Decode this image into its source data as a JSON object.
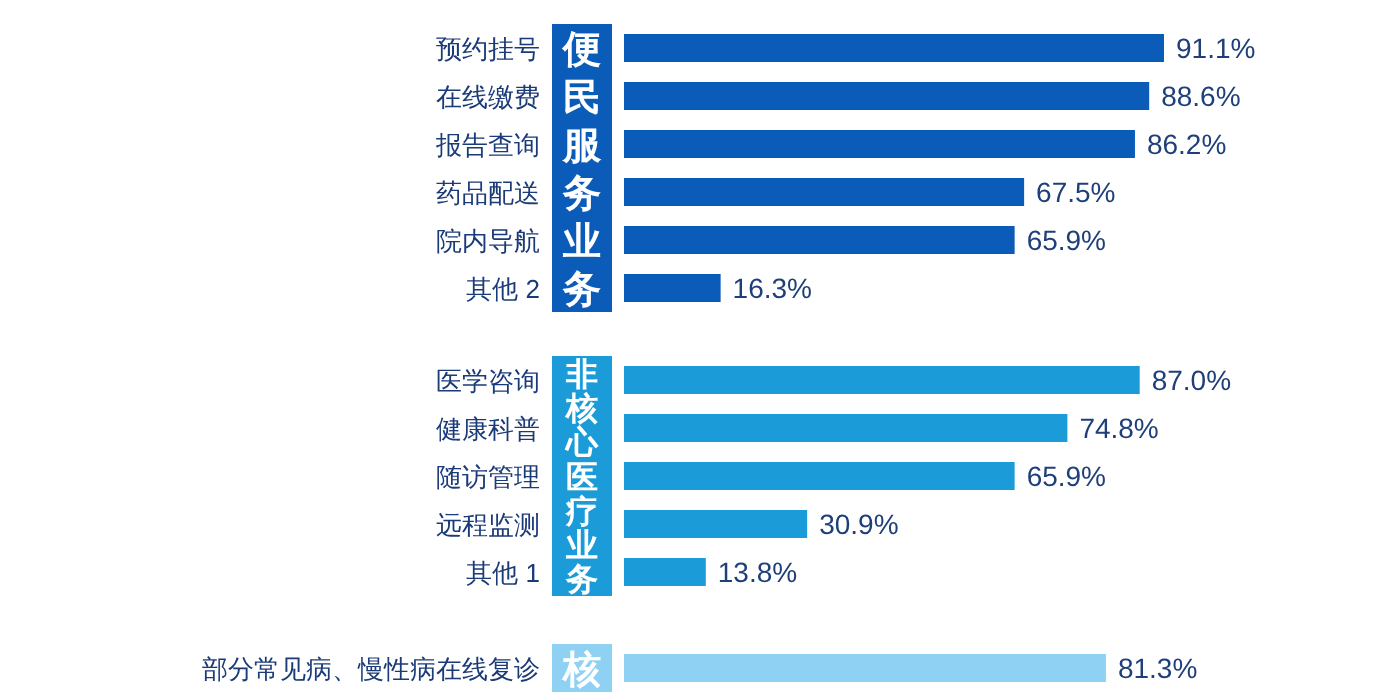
{
  "chart_data": [
    {
      "type": "bar",
      "orientation": "horizontal",
      "categories": [
        "预约挂号",
        "在线缴费",
        "报告查询",
        "药品配送",
        "院内导航",
        "其他 2"
      ],
      "values": [
        91.1,
        88.6,
        86.2,
        67.5,
        65.9,
        16.3
      ],
      "value_labels": [
        "91.1%",
        "88.6%",
        "86.2%",
        "67.5%",
        "65.9%",
        "16.3%"
      ],
      "color": "#0b5cb8",
      "annotations": [
        "便民服务业务"
      ]
    },
    {
      "type": "bar",
      "orientation": "horizontal",
      "categories": [
        "医学咨询",
        "健康科普",
        "随访管理",
        "远程监测",
        "其他 1"
      ],
      "values": [
        87.0,
        74.8,
        65.9,
        30.9,
        13.8
      ],
      "value_labels": [
        "87.0%",
        "74.8%",
        "65.9%",
        "30.9%",
        "13.8%"
      ],
      "color": "#1b9bd7",
      "annotations": [
        "非核心医疗业务"
      ]
    },
    {
      "type": "bar",
      "orientation": "horizontal",
      "categories": [
        "部分常见病、慢性病在线复诊"
      ],
      "values": [
        81.3
      ],
      "value_labels": [
        "81.3%"
      ],
      "color": "#8fd1f2",
      "annotations": [
        "核"
      ]
    }
  ]
}
